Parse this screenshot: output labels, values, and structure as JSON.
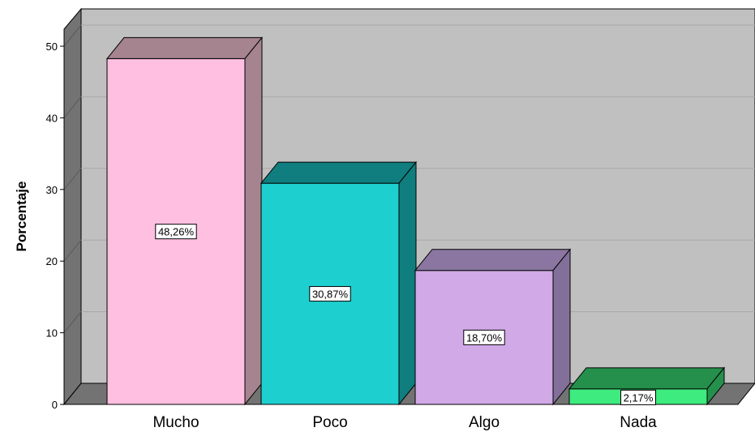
{
  "chart_data": {
    "type": "bar",
    "title": "",
    "xlabel": "",
    "ylabel": "Porcentaje",
    "ylim": [
      0,
      50
    ],
    "yticks": [
      0,
      10,
      20,
      30,
      40,
      50
    ],
    "grid": true,
    "legend": "none",
    "style": "3d",
    "categories": [
      "Mucho",
      "Poco",
      "Algo",
      "Nada"
    ],
    "values": [
      48.26,
      30.87,
      18.7,
      2.17
    ],
    "data_labels": [
      "48,26%",
      "30,87%",
      "18,70%",
      "2,17%"
    ],
    "colors": {
      "bars": [
        "#FFBFE1",
        "#1ECFCF",
        "#D1A9E6",
        "#3EEB7E"
      ],
      "bar_tops": [
        "#A5838F",
        "#107E7E",
        "#8A76A0",
        "#25904C"
      ],
      "bar_sides": [
        "#A5838F",
        "#107E7E",
        "#83709A",
        "#25904C"
      ],
      "plot_back": "#C0C0C0",
      "plot_floor": "#737373",
      "gridline": "#A8A8A8"
    }
  }
}
